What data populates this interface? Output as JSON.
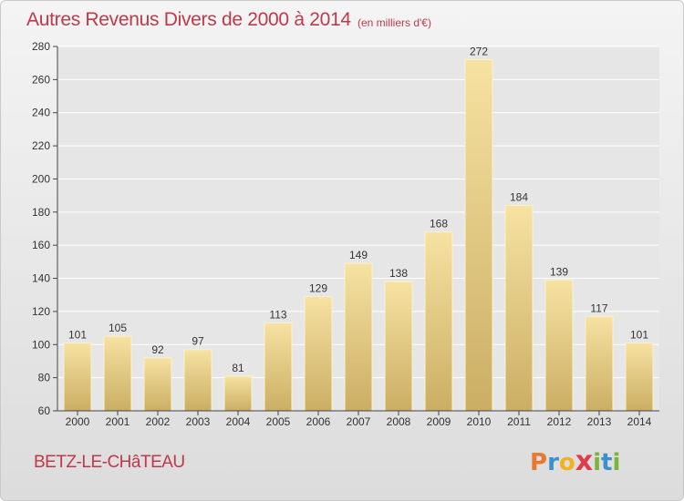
{
  "header": {
    "title": "Autres Revenus Divers de 2000 à 2014",
    "subtitle": "(en milliers d'€)"
  },
  "footer": {
    "city": "BETZ-LE-CHâTEAU",
    "logo_letters": [
      "P",
      "r",
      "o",
      "x",
      "i",
      "t",
      "i"
    ]
  },
  "colors": {
    "title": "#c0394a",
    "bar_light": "#f6e2a2",
    "bar_dark": "#cbae63",
    "axis": "#444444",
    "grid": "#ffffff",
    "logo": [
      "#e8792e",
      "#3c8fcd",
      "#f2b21d",
      "#e23c4a",
      "#7bb43a",
      "#3c8fcd",
      "#7bb43a"
    ]
  },
  "chart_data": {
    "type": "bar",
    "categories": [
      "2000",
      "2001",
      "2002",
      "2003",
      "2004",
      "2005",
      "2006",
      "2007",
      "2008",
      "2009",
      "2010",
      "2011",
      "2012",
      "2013",
      "2014"
    ],
    "values": [
      101,
      105,
      92,
      97,
      81,
      113,
      129,
      149,
      138,
      168,
      272,
      184,
      139,
      117,
      101
    ],
    "ylim": [
      60,
      280
    ],
    "yticks": [
      60,
      80,
      100,
      120,
      140,
      160,
      180,
      200,
      220,
      240,
      260,
      280
    ],
    "grid": true,
    "data_labels": true
  }
}
